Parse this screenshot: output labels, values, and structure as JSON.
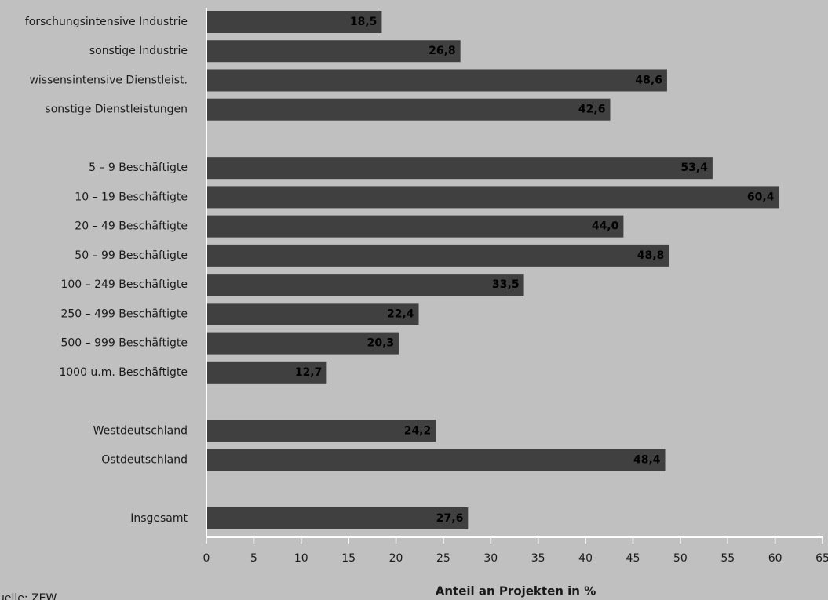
{
  "chart_data": {
    "type": "hbar",
    "categories": [
      "forschungsintensive Industrie",
      "sonstige Industrie",
      "wissensintensive Dienstleist.",
      "sonstige Dienstleistungen",
      null,
      "5 – 9 Beschäftigte",
      "10 – 19 Beschäftigte",
      "20 – 49 Beschäftigte",
      "50 – 99 Beschäftigte",
      "100 – 249 Beschäftigte",
      "250 – 499 Beschäftigte",
      "500 – 999 Beschäftigte",
      "1000 u.m. Beschäftigte",
      null,
      "Westdeutschland",
      "Ostdeutschland",
      null,
      "Insgesamt"
    ],
    "values": [
      18.5,
      26.8,
      48.6,
      42.6,
      null,
      53.4,
      60.4,
      44.0,
      48.8,
      33.5,
      22.4,
      20.3,
      12.7,
      null,
      24.2,
      48.4,
      null,
      27.6
    ],
    "value_labels": [
      "18,5",
      "26,8",
      "48,6",
      "42,6",
      null,
      "53,4",
      "60,4",
      "44,0",
      "48,8",
      "33,5",
      "22,4",
      "20,3",
      "12,7",
      null,
      "24,2",
      "48,4",
      null,
      "27,6"
    ],
    "color": "#404040",
    "xlim": [
      0,
      65
    ],
    "xticks": [
      0,
      5,
      10,
      15,
      20,
      25,
      30,
      35,
      40,
      45,
      50,
      55,
      60,
      65
    ],
    "xlabel": "Anteil an Projekten in %",
    "source": "Quelle: ZEW"
  }
}
